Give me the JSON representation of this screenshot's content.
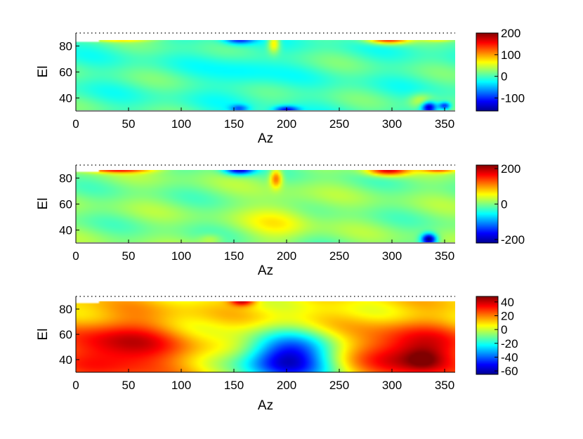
{
  "chart_data": [
    {
      "type": "heatmap",
      "xlabel": "Az",
      "ylabel": "El",
      "xlim": [
        0,
        360
      ],
      "ylim": [
        30,
        90
      ],
      "xticks": [
        "0",
        "50",
        "100",
        "150",
        "200",
        "250",
        "300",
        "350"
      ],
      "yticks": [
        "40",
        "60",
        "80"
      ],
      "colorbar": {
        "min": -160,
        "max": 200,
        "ticks": [
          "200",
          "100",
          "0",
          "-100"
        ],
        "tick_values": [
          200,
          100,
          0,
          -100
        ]
      },
      "colormap": "jet",
      "background_value": 0,
      "features": [
        {
          "az": 155,
          "el": 86,
          "value": -120,
          "saz": 10,
          "sel": 3
        },
        {
          "az": 40,
          "el": 87,
          "value": 160,
          "saz": 22,
          "sel": 2
        },
        {
          "az": 296,
          "el": 86,
          "value": 170,
          "saz": 14,
          "sel": 3
        },
        {
          "az": 345,
          "el": 87,
          "value": 120,
          "saz": 12,
          "sel": 2
        },
        {
          "az": 188,
          "el": 82,
          "value": 90,
          "saz": 4,
          "sel": 5
        },
        {
          "az": 200,
          "el": 31,
          "value": -110,
          "saz": 8,
          "sel": 2
        },
        {
          "az": 155,
          "el": 32,
          "value": -70,
          "saz": 6,
          "sel": 2
        },
        {
          "az": 335,
          "el": 33,
          "value": -150,
          "saz": 5,
          "sel": 3
        },
        {
          "az": 350,
          "el": 34,
          "value": -110,
          "saz": 4,
          "sel": 2
        },
        {
          "az": 328,
          "el": 38,
          "value": 50,
          "saz": 8,
          "sel": 4
        },
        {
          "az": 160,
          "el": 60,
          "value": -25,
          "saz": 22,
          "sel": 14
        }
      ]
    },
    {
      "type": "heatmap",
      "xlabel": "Az",
      "ylabel": "El",
      "xlim": [
        0,
        360
      ],
      "ylim": [
        30,
        90
      ],
      "xticks": [
        "0",
        "50",
        "100",
        "150",
        "200",
        "250",
        "300",
        "350"
      ],
      "yticks": [
        "40",
        "60",
        "80"
      ],
      "colorbar": {
        "min": -220,
        "max": 220,
        "ticks": [
          "200",
          "0",
          "-200"
        ],
        "tick_values": [
          200,
          0,
          -200
        ]
      },
      "colormap": "jet",
      "background_value": 0,
      "features": [
        {
          "az": 155,
          "el": 87,
          "value": -200,
          "saz": 10,
          "sel": 3
        },
        {
          "az": 40,
          "el": 87,
          "value": 170,
          "saz": 22,
          "sel": 2
        },
        {
          "az": 296,
          "el": 86,
          "value": 180,
          "saz": 14,
          "sel": 3
        },
        {
          "az": 345,
          "el": 87,
          "value": 130,
          "saz": 12,
          "sel": 2
        },
        {
          "az": 190,
          "el": 80,
          "value": 130,
          "saz": 4,
          "sel": 5
        },
        {
          "az": 195,
          "el": 48,
          "value": 50,
          "saz": 22,
          "sel": 12
        },
        {
          "az": 335,
          "el": 33,
          "value": -220,
          "saz": 5,
          "sel": 3
        },
        {
          "az": 128,
          "el": 33,
          "value": 40,
          "saz": 8,
          "sel": 3
        }
      ]
    },
    {
      "type": "heatmap",
      "xlabel": "Az",
      "ylabel": "El",
      "xlim": [
        0,
        360
      ],
      "ylim": [
        30,
        90
      ],
      "xticks": [
        "0",
        "50",
        "100",
        "150",
        "200",
        "250",
        "300",
        "350"
      ],
      "yticks": [
        "40",
        "60",
        "80"
      ],
      "colorbar": {
        "min": -65,
        "max": 48,
        "ticks": [
          "40",
          "20",
          "0",
          "-20",
          "-40",
          "-60"
        ],
        "tick_values": [
          40,
          20,
          0,
          -20,
          -40,
          -60
        ]
      },
      "colormap": "jet",
      "background_value": 8,
      "features": [
        {
          "az": 40,
          "el": 48,
          "value": 34,
          "saz": 40,
          "sel": 17
        },
        {
          "az": 320,
          "el": 45,
          "value": 38,
          "saz": 35,
          "sel": 15
        },
        {
          "az": 330,
          "el": 40,
          "value": 12,
          "saz": 12,
          "sel": 6
        },
        {
          "az": 200,
          "el": 40,
          "value": -68,
          "saz": 30,
          "sel": 14
        },
        {
          "az": 158,
          "el": 87,
          "value": 38,
          "saz": 8,
          "sel": 3
        }
      ]
    }
  ]
}
